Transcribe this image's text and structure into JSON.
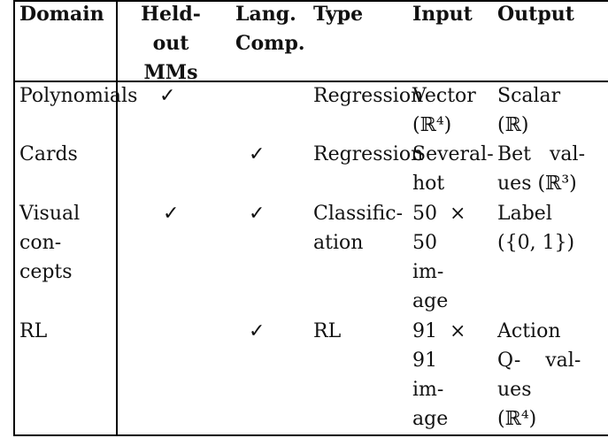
{
  "table": {
    "headers": {
      "domain": [
        "Domain"
      ],
      "heldout": [
        "Held-",
        "out",
        "MMs"
      ],
      "lang": [
        "Lang.",
        "Comp."
      ],
      "type": [
        "Type"
      ],
      "input": [
        "Input"
      ],
      "output": [
        "Output"
      ]
    },
    "check_glyph": "✓",
    "rows": [
      {
        "domain": [
          "Polynomials"
        ],
        "heldout_check": true,
        "lang_check": false,
        "type": [
          "Regression"
        ],
        "input": [
          "Vector",
          "(ℝ⁴)"
        ],
        "output": [
          "Scalar",
          "(ℝ)"
        ]
      },
      {
        "domain": [
          "Cards"
        ],
        "heldout_check": false,
        "lang_check": true,
        "type": [
          "Regression"
        ],
        "input": [
          "Several-",
          "hot"
        ],
        "output": [
          "Bet   val-",
          "ues (ℝ³)"
        ]
      },
      {
        "domain": [
          "Visual",
          "con-",
          "cepts"
        ],
        "heldout_check": true,
        "lang_check": true,
        "type": [
          "Classific-",
          "ation"
        ],
        "input": [
          "50  ×",
          "50",
          "im-",
          "age"
        ],
        "output": [
          "Label",
          "({0, 1})"
        ]
      },
      {
        "domain": [
          "RL"
        ],
        "heldout_check": false,
        "lang_check": true,
        "type": [
          "RL"
        ],
        "input": [
          "91  ×",
          "91",
          "im-",
          "age"
        ],
        "output": [
          "Action",
          "Q-    val-",
          "ues",
          "(ℝ⁴)"
        ]
      }
    ]
  }
}
